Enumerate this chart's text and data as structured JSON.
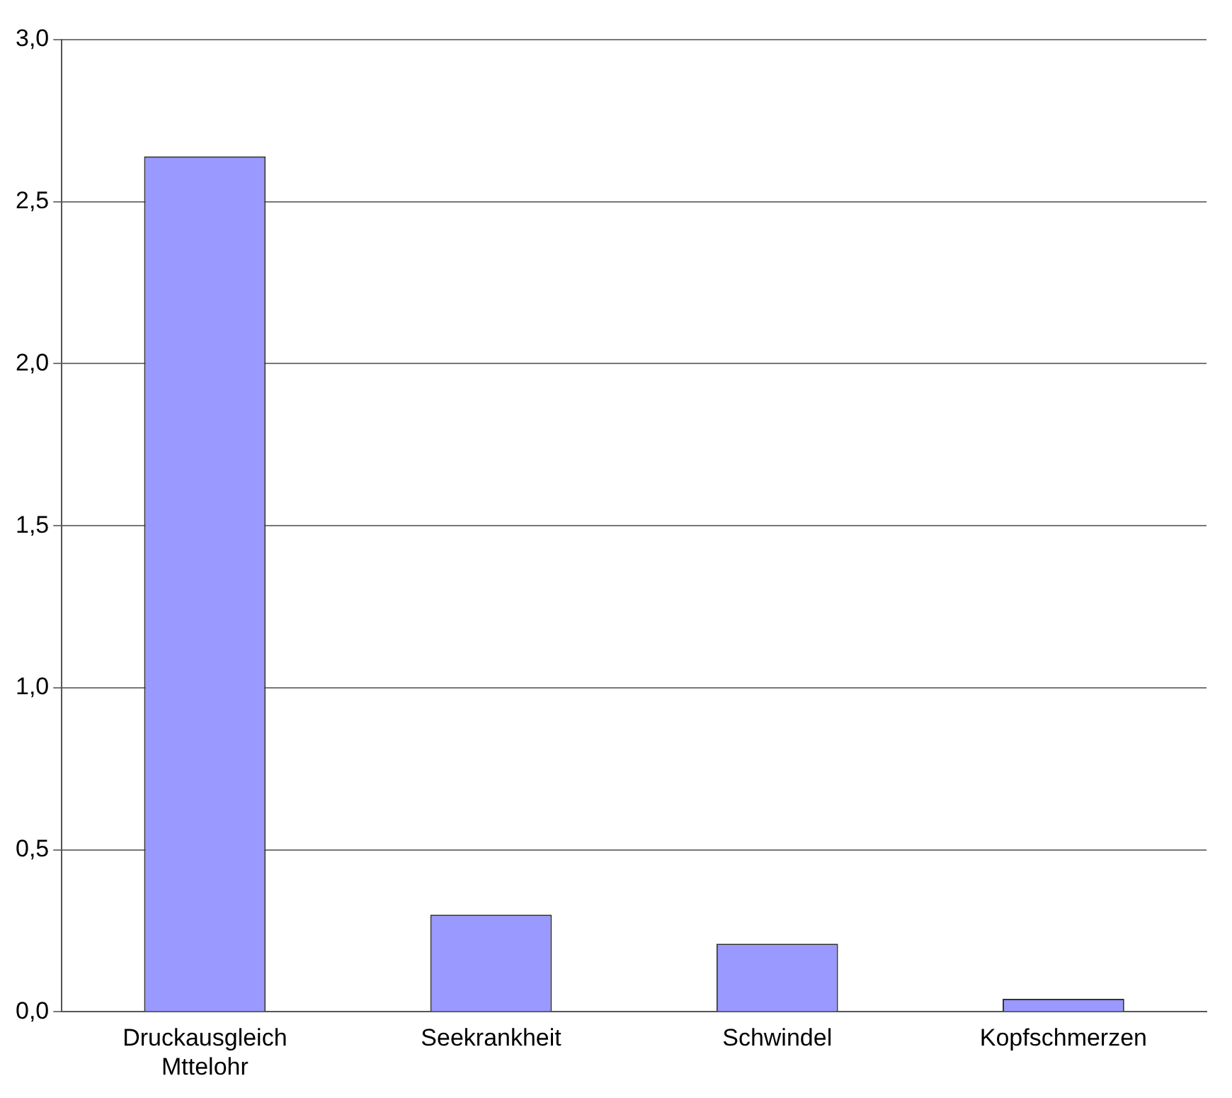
{
  "chart_data": {
    "type": "bar",
    "categories": [
      "Druckausgleich Mttelohr",
      "Seekrankheit",
      "Schwindel",
      "Kopfschmerzen"
    ],
    "values": [
      2.64,
      0.3,
      0.21,
      0.04
    ],
    "color": "#9999ff",
    "ylim": [
      0,
      3
    ],
    "yticks": [
      {
        "value": 0,
        "label": "0,0"
      },
      {
        "value": 0.5,
        "label": "0,5"
      },
      {
        "value": 1,
        "label": "1,0"
      },
      {
        "value": 1.5,
        "label": "1,5"
      },
      {
        "value": 2,
        "label": "2,0"
      },
      {
        "value": 2.5,
        "label": "2,5"
      },
      {
        "value": 3,
        "label": "3,0"
      }
    ],
    "grid": "y",
    "legend": false
  }
}
